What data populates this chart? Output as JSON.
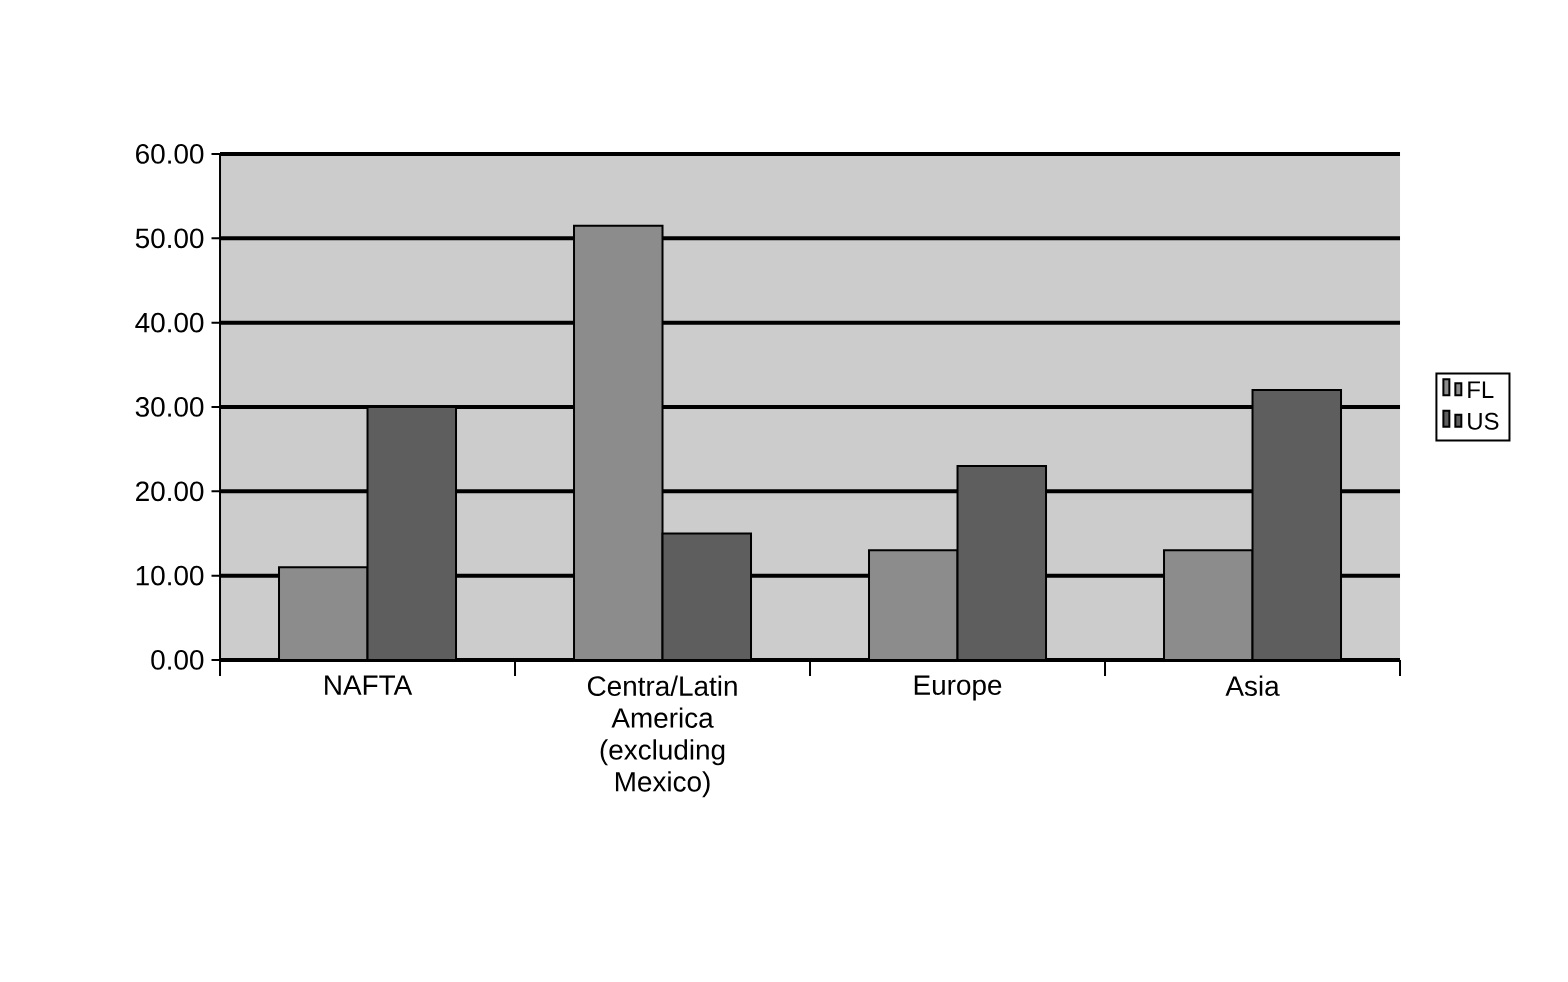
{
  "chart_data": {
    "type": "bar",
    "categories": [
      "NAFTA",
      "Centra/Latin America (excluding Mexico)",
      "Europe",
      "Asia"
    ],
    "series": [
      {
        "name": "FL",
        "color": "#8c8c8c",
        "values": [
          11,
          51.5,
          13,
          13
        ]
      },
      {
        "name": "US",
        "color": "#5e5e5e",
        "values": [
          30,
          15,
          23,
          32
        ]
      }
    ],
    "ylim": [
      0,
      60
    ],
    "yticks": [
      {
        "value": 0,
        "label": "0.00"
      },
      {
        "value": 10,
        "label": "10.00"
      },
      {
        "value": 20,
        "label": "20.00"
      },
      {
        "value": 30,
        "label": "30.00"
      },
      {
        "value": 40,
        "label": "40.00"
      },
      {
        "value": 50,
        "label": "50.00"
      },
      {
        "value": 60,
        "label": "60.00"
      }
    ],
    "grid": "y",
    "legend": "right"
  }
}
